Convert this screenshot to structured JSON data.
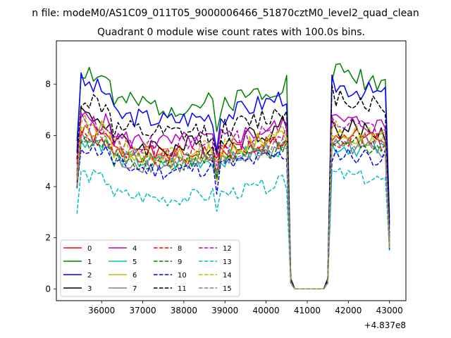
{
  "figure": {
    "suptitle": "n file: modeM0/AS1C09_011T05_9000006466_51870cztM0_level2_quad_clean",
    "title": "Quadrant 0 module wise count rates with 100.0s bins."
  },
  "chart_data": {
    "type": "line",
    "title": "Quadrant 0 module wise count rates with 100.0s bins.",
    "xlabel": "",
    "ylabel": "",
    "x_offset_label": "+4.837e8",
    "xlim": [
      34900,
      43400
    ],
    "ylim": [
      -0.46,
      9.7
    ],
    "xticks": [
      36000,
      37000,
      38000,
      39000,
      40000,
      41000,
      42000,
      43000
    ],
    "xtick_labels": [
      "36000",
      "37000",
      "38000",
      "39000",
      "40000",
      "41000",
      "42000",
      "43000"
    ],
    "yticks": [
      0,
      2,
      4,
      6,
      8
    ],
    "ytick_labels": [
      "0",
      "2",
      "4",
      "6",
      "8"
    ],
    "grid": false,
    "legend_location": "lower-left",
    "legend_columns": 4,
    "x_segments": [
      {
        "start": 35400,
        "end": 40500,
        "step": 100
      },
      {
        "start": 40600,
        "end": 41500,
        "step": 100
      },
      {
        "start": 41600,
        "end": 42900,
        "step": 100
      },
      {
        "start": 43000,
        "end": 43000,
        "step": 100
      }
    ],
    "series": [
      {
        "name": "0",
        "color": "#ff0000",
        "dash": "solid",
        "base": 5.4,
        "left": 6.1,
        "dip": 4.8,
        "right": 6.0,
        "gap_edge": 1.6,
        "noise": 0.35,
        "seed": 1
      },
      {
        "name": "1",
        "color": "#008000",
        "dash": "solid",
        "base": 7.3,
        "left": 8.6,
        "dip": 6.0,
        "right": 8.5,
        "gap_edge": 2.8,
        "noise": 0.45,
        "seed": 2
      },
      {
        "name": "2",
        "color": "#0000ff",
        "dash": "solid",
        "base": 6.8,
        "left": 8.1,
        "dip": 5.5,
        "right": 8.0,
        "gap_edge": 2.5,
        "noise": 0.4,
        "seed": 3
      },
      {
        "name": "3",
        "color": "#000000",
        "dash": "solid",
        "base": 5.7,
        "left": 6.9,
        "dip": 4.6,
        "right": 6.3,
        "gap_edge": 2.0,
        "noise": 0.45,
        "seed": 4
      },
      {
        "name": "4",
        "color": "#bf00bf",
        "dash": "solid",
        "base": 5.9,
        "left": 6.7,
        "dip": 5.0,
        "right": 6.6,
        "gap_edge": 1.8,
        "noise": 0.4,
        "seed": 5
      },
      {
        "name": "5",
        "color": "#00bfbf",
        "dash": "solid",
        "base": 5.1,
        "left": 5.9,
        "dip": 4.3,
        "right": 5.6,
        "gap_edge": 1.6,
        "noise": 0.35,
        "seed": 6
      },
      {
        "name": "6",
        "color": "#bfbf00",
        "dash": "solid",
        "base": 5.3,
        "left": 6.6,
        "dip": 4.4,
        "right": 6.0,
        "gap_edge": 1.6,
        "noise": 0.4,
        "seed": 7
      },
      {
        "name": "7",
        "color": "#808080",
        "dash": "solid",
        "base": 5.0,
        "left": 5.9,
        "dip": 4.2,
        "right": 5.7,
        "gap_edge": 1.6,
        "noise": 0.35,
        "seed": 8
      },
      {
        "name": "8",
        "color": "#ff0000",
        "dash": "dashed",
        "base": 5.3,
        "left": 6.0,
        "dip": 4.5,
        "right": 5.9,
        "gap_edge": 1.6,
        "noise": 0.35,
        "seed": 9
      },
      {
        "name": "9",
        "color": "#008000",
        "dash": "dashed",
        "base": 5.1,
        "left": 5.7,
        "dip": 4.4,
        "right": 5.8,
        "gap_edge": 1.6,
        "noise": 0.35,
        "seed": 10
      },
      {
        "name": "10",
        "color": "#0000ff",
        "dash": "dashed",
        "base": 4.8,
        "left": 5.6,
        "dip": 4.0,
        "right": 5.3,
        "gap_edge": 1.5,
        "noise": 0.35,
        "seed": 11
      },
      {
        "name": "11",
        "color": "#000000",
        "dash": "dashed",
        "base": 6.2,
        "left": 7.5,
        "dip": 5.0,
        "right": 7.6,
        "gap_edge": 2.2,
        "noise": 0.45,
        "seed": 12
      },
      {
        "name": "12",
        "color": "#bf00bf",
        "dash": "dashed",
        "base": 5.7,
        "left": 6.6,
        "dip": 4.8,
        "right": 6.5,
        "gap_edge": 1.8,
        "noise": 0.4,
        "seed": 13
      },
      {
        "name": "13",
        "color": "#00bfbf",
        "dash": "dashed",
        "base": 3.7,
        "left": 4.5,
        "dip": 3.2,
        "right": 4.5,
        "gap_edge": 1.5,
        "noise": 0.3,
        "seed": 14
      },
      {
        "name": "14",
        "color": "#bfbf00",
        "dash": "dashed",
        "base": 5.5,
        "left": 6.5,
        "dip": 4.6,
        "right": 6.2,
        "gap_edge": 1.6,
        "noise": 0.4,
        "seed": 15
      },
      {
        "name": "15",
        "color": "#808080",
        "dash": "dashed",
        "base": 5.2,
        "left": 6.0,
        "dip": 4.4,
        "right": 5.9,
        "gap_edge": 1.6,
        "noise": 0.35,
        "seed": 16
      }
    ]
  }
}
